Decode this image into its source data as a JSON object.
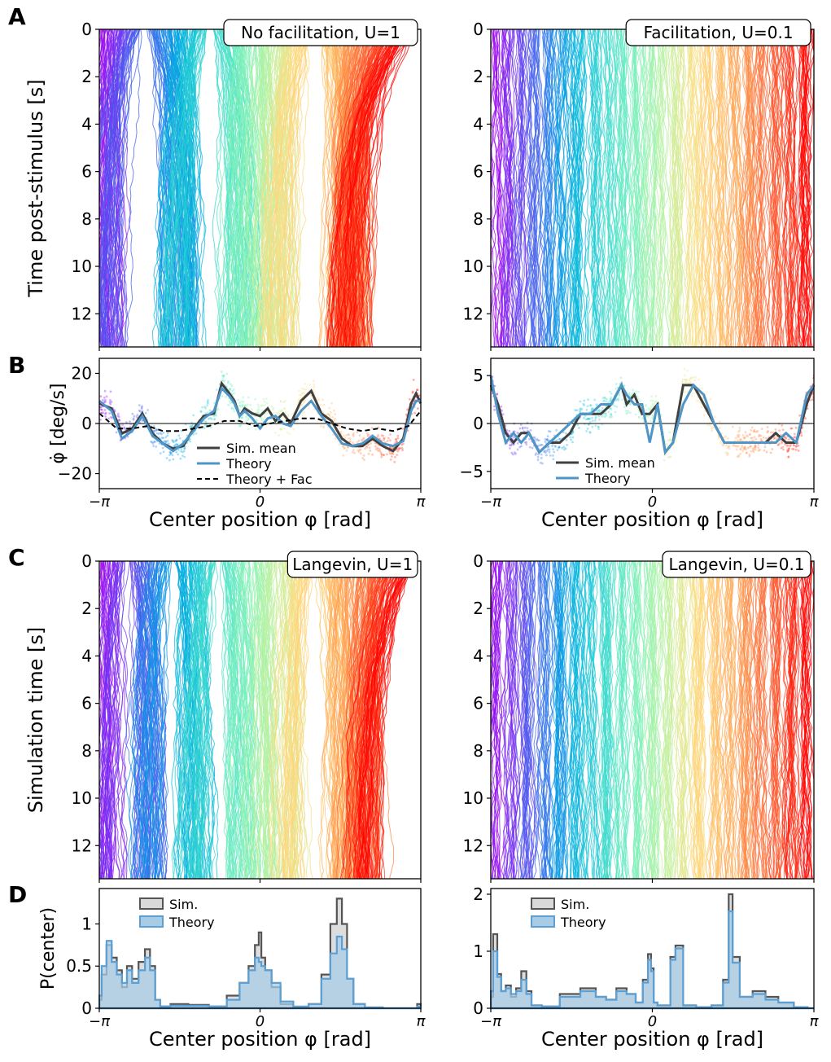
{
  "panel_letters": [
    "A",
    "B",
    "C",
    "D"
  ],
  "chart_data": [
    {
      "panel": "A",
      "type": "line",
      "annotation": "No facilitation, U=1",
      "ylabel": "Time post-stimulus [s]",
      "yticks": [
        "0",
        "2",
        "4",
        "6",
        "8",
        "10",
        "12"
      ],
      "ylim": [
        0,
        13.4
      ],
      "y_inverted": true,
      "xlim": [
        -3.1416,
        3.1416
      ],
      "description_series": "many trajectories of bump center colored by initial position (rainbow); drift toward attractors",
      "attractors": [
        -2.95,
        -1.6,
        0.0,
        0.3,
        1.65
      ]
    },
    {
      "panel": "A",
      "type": "line",
      "annotation": "Facilitation, U=0.1",
      "yticks": [
        "0",
        "2",
        "4",
        "6",
        "8",
        "10",
        "12"
      ],
      "ylim": [
        0,
        13.4
      ],
      "y_inverted": true,
      "xlim": [
        -3.1416,
        3.1416
      ]
    },
    {
      "panel": "B",
      "type": "scatter",
      "ylabel": "φ̇ [deg/s]",
      "xlabel": "Center position φ [rad]",
      "xticks": [
        "−π",
        "0",
        "π"
      ],
      "yticks": [
        "20",
        "0",
        "−20"
      ],
      "ylim": [
        -26,
        26
      ],
      "xlim": [
        -3.1416,
        3.1416
      ],
      "legend": [
        "Sim. mean",
        "Theory",
        "Theory + Fac"
      ],
      "series": [
        {
          "name": "Sim. mean",
          "color": "#404040",
          "x": [
            -3.14,
            -2.9,
            -2.7,
            -2.5,
            -2.3,
            -2.1,
            -1.9,
            -1.7,
            -1.5,
            -1.3,
            -1.1,
            -0.9,
            -0.75,
            -0.6,
            -0.5,
            -0.4,
            -0.3,
            -0.15,
            0.0,
            0.15,
            0.3,
            0.45,
            0.6,
            0.8,
            1.0,
            1.2,
            1.4,
            1.6,
            1.8,
            2.0,
            2.2,
            2.4,
            2.6,
            2.8,
            2.95,
            3.05,
            3.14
          ],
          "y": [
            8,
            6,
            -4,
            -2,
            4,
            -4,
            -8,
            -10,
            -9,
            -2,
            3,
            4,
            16,
            12,
            9,
            3,
            6,
            4,
            3,
            6,
            1,
            4,
            0,
            9,
            13,
            4,
            1,
            -6,
            -9,
            -9,
            -6,
            -9,
            -11,
            -6,
            8,
            12,
            8
          ]
        },
        {
          "name": "Theory",
          "color": "#4f95c8",
          "x": [
            -3.14,
            -2.9,
            -2.7,
            -2.5,
            -2.3,
            -2.1,
            -1.9,
            -1.7,
            -1.5,
            -1.3,
            -1.1,
            -0.9,
            -0.75,
            -0.6,
            -0.5,
            -0.4,
            -0.3,
            -0.15,
            0.0,
            0.15,
            0.3,
            0.45,
            0.6,
            0.8,
            1.0,
            1.2,
            1.4,
            1.6,
            1.8,
            2.0,
            2.2,
            2.4,
            2.6,
            2.8,
            2.95,
            3.05,
            3.14
          ],
          "y": [
            9,
            5,
            -6,
            -3,
            3,
            -5,
            -8,
            -11,
            -8,
            -3,
            2,
            5,
            14,
            11,
            8,
            3,
            5,
            2,
            -2,
            2,
            3,
            0,
            -1,
            5,
            9,
            3,
            -2,
            -8,
            -9,
            -8,
            -5,
            -8,
            -9,
            -7,
            5,
            9,
            9
          ]
        },
        {
          "name": "Theory + Fac",
          "color": "#000000",
          "dashed": true,
          "x": [
            -3.14,
            -2.8,
            -2.5,
            -2.2,
            -1.9,
            -1.6,
            -1.3,
            -1.0,
            -0.7,
            -0.4,
            -0.1,
            0.2,
            0.5,
            0.8,
            1.1,
            1.4,
            1.7,
            2.0,
            2.3,
            2.6,
            2.9,
            3.14
          ],
          "y": [
            4,
            -2,
            -2,
            -1,
            -3,
            -3,
            -2,
            -1,
            1,
            1,
            -1,
            0,
            1,
            2,
            2,
            0,
            -2,
            -3,
            -2,
            -3,
            -1,
            5
          ]
        }
      ]
    },
    {
      "panel": "B",
      "type": "scatter",
      "xlabel": "Center position φ [rad]",
      "xticks": [
        "−π",
        "0",
        "π"
      ],
      "yticks": [
        "5",
        "0",
        "−5"
      ],
      "ylim": [
        -6.8,
        6.8
      ],
      "xlim": [
        -3.1416,
        3.1416
      ],
      "legend": [
        "Sim. mean",
        "Theory"
      ],
      "series": [
        {
          "name": "Sim. mean",
          "color": "#404040",
          "x": [
            -3.14,
            -3.0,
            -2.85,
            -2.7,
            -2.55,
            -2.4,
            -2.2,
            -2.0,
            -1.8,
            -1.6,
            -1.4,
            -1.2,
            -1.0,
            -0.8,
            -0.6,
            -0.5,
            -0.35,
            -0.2,
            -0.05,
            0.1,
            0.25,
            0.4,
            0.6,
            0.8,
            1.0,
            1.2,
            1.4,
            1.6,
            1.8,
            2.0,
            2.2,
            2.4,
            2.6,
            2.8,
            3.0,
            3.14
          ],
          "y": [
            4,
            2,
            -1,
            -2,
            -1,
            -1,
            -3,
            -2,
            -2,
            -1,
            1,
            1,
            1,
            2,
            4,
            2,
            3,
            1,
            1,
            2,
            -3,
            -2,
            4,
            4,
            2,
            0,
            -2,
            -2,
            -2,
            -2,
            -2,
            -1,
            -2,
            -2,
            2,
            4
          ]
        },
        {
          "name": "Theory",
          "color": "#4f95c8",
          "x": [
            -3.14,
            -3.0,
            -2.85,
            -2.7,
            -2.55,
            -2.4,
            -2.2,
            -2.0,
            -1.8,
            -1.6,
            -1.4,
            -1.2,
            -1.0,
            -0.8,
            -0.6,
            -0.5,
            -0.35,
            -0.2,
            -0.05,
            0.1,
            0.25,
            0.4,
            0.6,
            0.8,
            1.0,
            1.2,
            1.4,
            1.6,
            1.8,
            2.0,
            2.2,
            2.4,
            2.6,
            2.8,
            3.0,
            3.14
          ],
          "y": [
            5,
            1,
            -2,
            -1,
            -2,
            -1,
            -3,
            -2,
            -1,
            0,
            1,
            1,
            2,
            2,
            4,
            3,
            2,
            2,
            -2,
            2,
            -3,
            -2,
            2,
            4,
            3,
            0,
            -2,
            -2,
            -2,
            -2,
            -2,
            -2,
            -1,
            -2,
            3,
            4
          ]
        }
      ]
    },
    {
      "panel": "C",
      "type": "line",
      "annotation": "Langevin, U=1",
      "ylabel": "Simulation time [s]",
      "yticks": [
        "0",
        "2",
        "4",
        "6",
        "8",
        "10",
        "12"
      ],
      "ylim": [
        0,
        13.4
      ],
      "y_inverted": true,
      "xlim": [
        -3.1416,
        3.1416
      ]
    },
    {
      "panel": "C",
      "type": "line",
      "annotation": "Langevin, U=0.1",
      "yticks": [
        "0",
        "2",
        "4",
        "6",
        "8",
        "10",
        "12"
      ],
      "ylim": [
        0,
        13.4
      ],
      "y_inverted": true,
      "xlim": [
        -3.1416,
        3.1416
      ]
    },
    {
      "panel": "D",
      "type": "area",
      "ylabel": "P(center)",
      "xlabel": "Center position φ [rad]",
      "xticks": [
        "−π",
        "0",
        "π"
      ],
      "yticks": [
        "1",
        "0.5",
        "0"
      ],
      "ylim": [
        0,
        1.42
      ],
      "xlim": [
        -3.1416,
        3.1416
      ],
      "legend": [
        "Sim.",
        "Theory"
      ],
      "series": [
        {
          "name": "Sim.",
          "color": "#555555",
          "fill": "#d9d9d9",
          "x": [
            -3.14,
            -3.05,
            -2.95,
            -2.85,
            -2.75,
            -2.65,
            -2.55,
            -2.45,
            -2.3,
            -2.2,
            -2.1,
            -2.0,
            -1.9,
            -1.6,
            -1.2,
            -0.8,
            -0.5,
            -0.3,
            -0.15,
            -0.05,
            0.0,
            0.05,
            0.15,
            0.3,
            0.5,
            0.8,
            1.1,
            1.3,
            1.45,
            1.55,
            1.65,
            1.75,
            1.9,
            2.2,
            2.6,
            3.0,
            3.14
          ],
          "y": [
            0.1,
            0.4,
            0.75,
            0.6,
            0.45,
            0.25,
            0.5,
            0.35,
            0.55,
            0.7,
            0.5,
            0.1,
            0.02,
            0.05,
            0.04,
            0.02,
            0.15,
            0.3,
            0.5,
            0.75,
            0.9,
            0.6,
            0.45,
            0.25,
            0.05,
            0.01,
            0.05,
            0.4,
            1.0,
            1.3,
            1.0,
            0.35,
            0.05,
            0.01,
            0.0,
            0.0,
            0.05
          ]
        },
        {
          "name": "Theory",
          "color": "#5b9fd4",
          "fill": "#a8cbe6",
          "x": [
            -3.14,
            -3.05,
            -2.95,
            -2.85,
            -2.75,
            -2.65,
            -2.55,
            -2.45,
            -2.3,
            -2.2,
            -2.1,
            -2.0,
            -1.9,
            -1.6,
            -1.2,
            -0.8,
            -0.5,
            -0.3,
            -0.15,
            -0.05,
            0.0,
            0.05,
            0.15,
            0.3,
            0.5,
            0.8,
            1.1,
            1.3,
            1.45,
            1.55,
            1.65,
            1.75,
            1.9,
            2.2,
            2.6,
            3.0,
            3.14
          ],
          "y": [
            0.15,
            0.5,
            0.8,
            0.55,
            0.4,
            0.3,
            0.45,
            0.3,
            0.45,
            0.6,
            0.45,
            0.1,
            0.02,
            0.03,
            0.03,
            0.02,
            0.1,
            0.3,
            0.45,
            0.6,
            0.55,
            0.5,
            0.45,
            0.3,
            0.08,
            0.02,
            0.05,
            0.35,
            0.65,
            0.85,
            0.7,
            0.35,
            0.05,
            0.01,
            0.0,
            0.0,
            0.02
          ]
        }
      ]
    },
    {
      "panel": "D",
      "type": "area",
      "xlabel": "Center position φ [rad]",
      "xticks": [
        "−π",
        "0",
        "π"
      ],
      "yticks": [
        "2",
        "1",
        "0"
      ],
      "ylim": [
        0,
        2.1
      ],
      "xlim": [
        -3.1416,
        3.1416
      ],
      "legend": [
        "Sim.",
        "Theory"
      ],
      "series": [
        {
          "name": "Sim.",
          "color": "#555555",
          "fill": "#d9d9d9",
          "x": [
            -3.14,
            -3.05,
            -2.98,
            -2.9,
            -2.8,
            -2.7,
            -2.6,
            -2.5,
            -2.4,
            -2.3,
            -2.0,
            -1.6,
            -1.2,
            -1.0,
            -0.8,
            -0.6,
            -0.4,
            -0.25,
            -0.12,
            -0.05,
            0.0,
            0.05,
            0.15,
            0.3,
            0.4,
            0.5,
            0.7,
            1.0,
            1.3,
            1.45,
            1.52,
            1.6,
            1.8,
            2.1,
            2.3,
            2.6,
            2.9,
            3.14
          ],
          "y": [
            0.2,
            1.3,
            0.6,
            0.3,
            0.4,
            0.2,
            0.35,
            0.65,
            0.3,
            0.05,
            0.03,
            0.25,
            0.35,
            0.2,
            0.15,
            0.35,
            0.25,
            0.1,
            0.5,
            0.95,
            0.7,
            0.1,
            0.05,
            0.05,
            0.9,
            1.1,
            0.05,
            0.02,
            0.05,
            0.5,
            2.0,
            0.9,
            0.2,
            0.3,
            0.2,
            0.1,
            0.02,
            0.0
          ]
        },
        {
          "name": "Theory",
          "color": "#5b9fd4",
          "fill": "#a8cbe6",
          "x": [
            -3.14,
            -3.05,
            -2.98,
            -2.9,
            -2.8,
            -2.7,
            -2.6,
            -2.5,
            -2.4,
            -2.3,
            -2.0,
            -1.6,
            -1.2,
            -1.0,
            -0.8,
            -0.6,
            -0.4,
            -0.25,
            -0.12,
            -0.05,
            0.0,
            0.05,
            0.15,
            0.3,
            0.4,
            0.5,
            0.7,
            1.0,
            1.3,
            1.45,
            1.52,
            1.6,
            1.8,
            2.1,
            2.3,
            2.6,
            2.9,
            3.14
          ],
          "y": [
            0.3,
            1.0,
            0.55,
            0.3,
            0.35,
            0.25,
            0.3,
            0.5,
            0.25,
            0.05,
            0.03,
            0.2,
            0.3,
            0.2,
            0.15,
            0.3,
            0.25,
            0.1,
            0.45,
            0.85,
            0.65,
            0.1,
            0.05,
            0.05,
            0.85,
            1.05,
            0.05,
            0.02,
            0.05,
            0.45,
            1.7,
            0.8,
            0.2,
            0.25,
            0.15,
            0.1,
            0.02,
            0.0
          ]
        }
      ]
    }
  ]
}
